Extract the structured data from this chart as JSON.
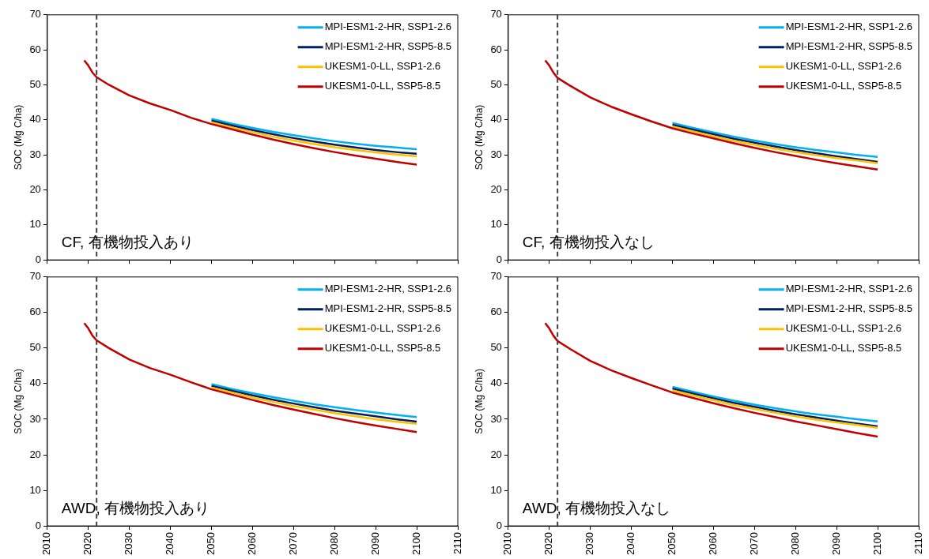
{
  "chart_data": [
    {
      "type": "line",
      "ylabel": "SOC (Mg C/ha)",
      "xlim": [
        2010,
        2110
      ],
      "ylim": [
        0,
        70
      ],
      "xticks": [
        2010,
        2020,
        2030,
        2040,
        2050,
        2060,
        2070,
        2080,
        2090,
        2100,
        2110
      ],
      "yticks": [
        0,
        10,
        20,
        30,
        40,
        50,
        60,
        70
      ],
      "tick_labels": "y",
      "legend": "top right",
      "annotations": [
        "CF, 有機物投入あり"
      ],
      "ref_lines": [
        {
          "axis": "x",
          "value": 2022,
          "color": "#404040",
          "line_style": "dashed"
        }
      ],
      "x": [
        2019,
        2020,
        2021,
        2022,
        2025,
        2030,
        2035,
        2040,
        2045,
        2050,
        2055,
        2060,
        2065,
        2070,
        2075,
        2080,
        2085,
        2090,
        2095,
        2100
      ],
      "series": [
        {
          "name": "MPI-ESM1-2-HR, SSP1-2.6",
          "color": "#00b0f0",
          "values": [
            null,
            null,
            null,
            null,
            null,
            null,
            null,
            null,
            null,
            40.3,
            38.9,
            37.7,
            36.6,
            35.6,
            34.7,
            33.9,
            33.2,
            32.6,
            32.1,
            31.6
          ]
        },
        {
          "name": "MPI-ESM1-2-HR, SSP5-8.5",
          "color": "#002060",
          "values": [
            null,
            null,
            null,
            null,
            null,
            null,
            null,
            null,
            null,
            39.8,
            38.4,
            37.1,
            35.9,
            34.8,
            33.8,
            32.9,
            32.1,
            31.4,
            30.8,
            30.3
          ]
        },
        {
          "name": "UKESM1-0-LL, SSP1-2.6",
          "color": "#ffc000",
          "values": [
            null,
            null,
            null,
            null,
            null,
            null,
            null,
            null,
            null,
            39.3,
            37.8,
            36.5,
            35.2,
            34.1,
            33.1,
            32.2,
            31.4,
            30.7,
            30.1,
            29.6
          ]
        },
        {
          "name": "UKESM1-0-LL, SSP5-8.5",
          "color": "#c00000",
          "values": [
            57,
            55.5,
            53.5,
            52.2,
            50,
            47,
            44.7,
            42.8,
            40.6,
            38.8,
            37.3,
            35.8,
            34.4,
            33.1,
            31.9,
            30.8,
            29.8,
            28.9,
            28,
            27.2
          ]
        }
      ]
    },
    {
      "type": "line",
      "ylabel": "SOC (Mg C/ha)",
      "xlim": [
        2010,
        2110
      ],
      "ylim": [
        0,
        70
      ],
      "xticks": [
        2010,
        2020,
        2030,
        2040,
        2050,
        2060,
        2070,
        2080,
        2090,
        2100,
        2110
      ],
      "yticks": [
        0,
        10,
        20,
        30,
        40,
        50,
        60,
        70
      ],
      "tick_labels": "y",
      "legend": "top right",
      "annotations": [
        "CF, 有機物投入なし"
      ],
      "ref_lines": [
        {
          "axis": "x",
          "value": 2022,
          "color": "#404040",
          "line_style": "dashed"
        }
      ],
      "x": [
        2019,
        2020,
        2021,
        2022,
        2025,
        2030,
        2035,
        2040,
        2045,
        2050,
        2055,
        2060,
        2065,
        2070,
        2075,
        2080,
        2085,
        2090,
        2095,
        2100
      ],
      "series": [
        {
          "name": "MPI-ESM1-2-HR, SSP1-2.6",
          "color": "#00b0f0",
          "values": [
            null,
            null,
            null,
            null,
            null,
            null,
            null,
            null,
            null,
            39.1,
            37.7,
            36.4,
            35.2,
            34.1,
            33.1,
            32.2,
            31.4,
            30.7,
            30,
            29.4
          ]
        },
        {
          "name": "MPI-ESM1-2-HR, SSP5-8.5",
          "color": "#002060",
          "values": [
            null,
            null,
            null,
            null,
            null,
            null,
            null,
            null,
            null,
            38.6,
            37.2,
            35.9,
            34.6,
            33.5,
            32.4,
            31.4,
            30.5,
            29.6,
            28.8,
            28
          ]
        },
        {
          "name": "UKESM1-0-LL, SSP1-2.6",
          "color": "#ffc000",
          "values": [
            null,
            null,
            null,
            null,
            null,
            null,
            null,
            null,
            null,
            38.1,
            36.7,
            35.3,
            34,
            32.9,
            31.8,
            30.8,
            29.9,
            29.1,
            28.4,
            27.6
          ]
        },
        {
          "name": "UKESM1-0-LL, SSP5-8.5",
          "color": "#c00000",
          "values": [
            57,
            55.5,
            53.5,
            52,
            49.8,
            46.4,
            43.8,
            41.6,
            39.5,
            37.6,
            36.1,
            34.7,
            33.3,
            32,
            30.8,
            29.7,
            28.6,
            27.6,
            26.7,
            25.8
          ]
        }
      ]
    },
    {
      "type": "line",
      "ylabel": "SOC (Mg C/ha)",
      "xlim": [
        2010,
        2110
      ],
      "ylim": [
        0,
        70
      ],
      "xticks": [
        2010,
        2020,
        2030,
        2040,
        2050,
        2060,
        2070,
        2080,
        2090,
        2100,
        2110
      ],
      "yticks": [
        0,
        10,
        20,
        30,
        40,
        50,
        60,
        70
      ],
      "legend": "top right",
      "annotations": [
        "AWD, 有機物投入あり"
      ],
      "ref_lines": [
        {
          "axis": "x",
          "value": 2022,
          "color": "#404040",
          "line_style": "dashed"
        }
      ],
      "x": [
        2019,
        2020,
        2021,
        2022,
        2025,
        2030,
        2035,
        2040,
        2045,
        2050,
        2055,
        2060,
        2065,
        2070,
        2075,
        2080,
        2085,
        2090,
        2095,
        2100
      ],
      "series": [
        {
          "name": "MPI-ESM1-2-HR, SSP1-2.6",
          "color": "#00b0f0",
          "values": [
            null,
            null,
            null,
            null,
            null,
            null,
            null,
            null,
            null,
            39.9,
            38.5,
            37.3,
            36.2,
            35.2,
            34.2,
            33.4,
            32.6,
            31.9,
            31.2,
            30.6
          ]
        },
        {
          "name": "MPI-ESM1-2-HR, SSP5-8.5",
          "color": "#002060",
          "values": [
            null,
            null,
            null,
            null,
            null,
            null,
            null,
            null,
            null,
            39.4,
            38,
            36.7,
            35.5,
            34.4,
            33.4,
            32.4,
            31.6,
            30.8,
            30,
            29.3
          ]
        },
        {
          "name": "UKESM1-0-LL, SSP1-2.6",
          "color": "#ffc000",
          "values": [
            null,
            null,
            null,
            null,
            null,
            null,
            null,
            null,
            null,
            38.9,
            37.5,
            36.1,
            34.9,
            33.7,
            32.7,
            31.7,
            30.8,
            30,
            29.3,
            28.7
          ]
        },
        {
          "name": "UKESM1-0-LL, SSP5-8.5",
          "color": "#c00000",
          "values": [
            57,
            55.5,
            53.5,
            52.2,
            50,
            46.8,
            44.4,
            42.5,
            40.4,
            38.4,
            36.9,
            35.4,
            34,
            32.7,
            31.5,
            30.3,
            29.2,
            28.2,
            27.3,
            26.4
          ]
        }
      ]
    },
    {
      "type": "line",
      "ylabel": "SOC (Mg C/ha)",
      "xlim": [
        2010,
        2110
      ],
      "ylim": [
        0,
        70
      ],
      "xticks": [
        2010,
        2020,
        2030,
        2040,
        2050,
        2060,
        2070,
        2080,
        2090,
        2100,
        2110
      ],
      "yticks": [
        0,
        10,
        20,
        30,
        40,
        50,
        60,
        70
      ],
      "legend": "top right",
      "annotations": [
        "AWD, 有機物投入なし"
      ],
      "ref_lines": [
        {
          "axis": "x",
          "value": 2022,
          "color": "#404040",
          "line_style": "dashed"
        }
      ],
      "x": [
        2019,
        2020,
        2021,
        2022,
        2025,
        2030,
        2035,
        2040,
        2045,
        2050,
        2055,
        2060,
        2065,
        2070,
        2075,
        2080,
        2085,
        2090,
        2095,
        2100
      ],
      "series": [
        {
          "name": "MPI-ESM1-2-HR, SSP1-2.6",
          "color": "#00b0f0",
          "values": [
            null,
            null,
            null,
            null,
            null,
            null,
            null,
            null,
            null,
            39.1,
            37.7,
            36.4,
            35.2,
            34.1,
            33.1,
            32.2,
            31.4,
            30.7,
            30,
            29.4
          ]
        },
        {
          "name": "MPI-ESM1-2-HR, SSP5-8.5",
          "color": "#002060",
          "values": [
            null,
            null,
            null,
            null,
            null,
            null,
            null,
            null,
            null,
            38.6,
            37.2,
            35.9,
            34.6,
            33.5,
            32.4,
            31.4,
            30.5,
            29.6,
            28.8,
            28
          ]
        },
        {
          "name": "UKESM1-0-LL, SSP1-2.6",
          "color": "#ffc000",
          "values": [
            null,
            null,
            null,
            null,
            null,
            null,
            null,
            null,
            null,
            38.1,
            36.7,
            35.3,
            34,
            32.9,
            31.8,
            30.8,
            29.9,
            29.1,
            28.4,
            27.6
          ]
        },
        {
          "name": "UKESM1-0-LL, SSP5-8.5",
          "color": "#c00000",
          "values": [
            57,
            55.5,
            53.5,
            52,
            49.8,
            46.4,
            43.8,
            41.6,
            39.5,
            37.5,
            36,
            34.5,
            33.1,
            31.8,
            30.6,
            29.4,
            28.3,
            27.2,
            26.1,
            25.1
          ]
        }
      ]
    }
  ]
}
